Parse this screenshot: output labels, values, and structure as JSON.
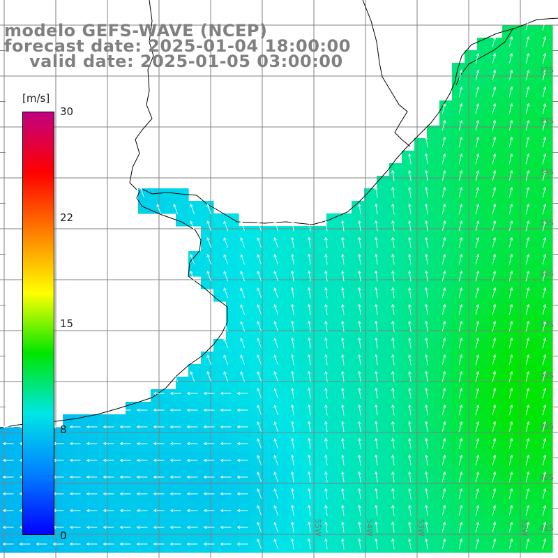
{
  "header": {
    "line1": "modelo GEFS-WAVE (NCEP)",
    "line2": "forecast date: 2025-01-04 18:00:00",
    "line3": "valid date: 2025-01-05 03:00:00"
  },
  "colorbar": {
    "unit": "[m/s]",
    "ticks": [
      "30",
      "22",
      "15",
      "8",
      "0"
    ],
    "min": 0,
    "max": 30,
    "colors": [
      "#0000ff",
      "#0080ff",
      "#00e6e6",
      "#00e600",
      "#ffff00",
      "#ff8000",
      "#ff0000",
      "#c00080"
    ]
  },
  "map": {
    "lat_labels": [
      "32S",
      "33S",
      "34S",
      "35S",
      "36S",
      "37S",
      "38S",
      "39S",
      "40S",
      "41S"
    ],
    "lon_labels": [
      "55W",
      "54W",
      "53W",
      "52W"
    ],
    "grid_color": "#808080",
    "coast_color": "#000000",
    "arrow_color": "#ffffff"
  }
}
